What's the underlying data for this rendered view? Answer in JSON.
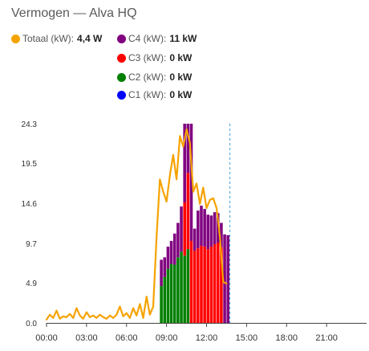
{
  "card": {
    "title": "Vermogen — Alva HQ"
  },
  "legend": [
    {
      "label": "Totaal (kW):",
      "value": "4,4 W",
      "color": "#f5a300"
    },
    {
      "label": "C4 (kW):",
      "value": "11 kW",
      "color": "#800080"
    },
    {
      "label": "C3 (kW):",
      "value": "0 kW",
      "color": "#ff0000"
    },
    {
      "label": "C2 (kW):",
      "value": "0 kW",
      "color": "#008000"
    },
    {
      "label": "C1 (kW):",
      "value": "0 kW",
      "color": "#0000ff"
    }
  ],
  "chart_data": {
    "type": "bar",
    "xlabel": "",
    "ylabel": "",
    "ylim": [
      0,
      24.3
    ],
    "xlim_hours": [
      0,
      24
    ],
    "yticks": [
      "24.3",
      "19.5",
      "14.6",
      "9.7",
      "4.9",
      "0.0"
    ],
    "ytick_values": [
      24.3,
      19.5,
      14.6,
      9.7,
      4.9,
      0.0
    ],
    "xticks": [
      "00:00",
      "03:00",
      "06:00",
      "09:00",
      "12:00",
      "15:00",
      "18:00",
      "21:00"
    ],
    "xtick_values": [
      0,
      3,
      6,
      9,
      12,
      15,
      18,
      21
    ],
    "now_marker_hour": 13.75,
    "grid": false,
    "legend_position": "top",
    "stacked_series": [
      {
        "name": "C2 (kW)",
        "color": "#008000",
        "x": [
          8.5,
          8.75,
          9.0,
          9.25,
          9.5,
          9.75,
          10.0,
          10.25,
          10.5,
          10.75,
          11.0,
          11.25,
          11.5,
          11.75,
          12.0,
          12.25,
          12.5,
          12.75,
          13.0,
          13.25,
          13.5
        ],
        "values": [
          4.5,
          5.6,
          6.6,
          7.2,
          7.1,
          8.0,
          8.7,
          8.2,
          9.0,
          0,
          0,
          0,
          0,
          0,
          0,
          0,
          0,
          0,
          0,
          0,
          0
        ]
      },
      {
        "name": "C3 (kW)",
        "color": "#ff0000",
        "x": [
          8.5,
          8.75,
          9.0,
          9.25,
          9.5,
          9.75,
          10.0,
          10.25,
          10.5,
          10.75,
          11.0,
          11.25,
          11.5,
          11.75,
          12.0,
          12.25,
          12.5,
          12.75,
          13.0,
          13.25,
          13.5
        ],
        "values": [
          0,
          0,
          0,
          0,
          0,
          0,
          0,
          6.5,
          9.3,
          10.0,
          8.8,
          9.1,
          9.4,
          9.3,
          9.0,
          9.3,
          9.6,
          9.8,
          9.2,
          0,
          0
        ]
      },
      {
        "name": "C4 (kW)",
        "color": "#800080",
        "x": [
          8.5,
          8.75,
          9.0,
          9.25,
          9.5,
          9.75,
          10.0,
          10.25,
          10.5,
          10.75,
          11.0,
          11.25,
          11.5,
          11.75,
          12.0,
          12.25,
          12.5,
          12.75,
          13.0,
          13.25,
          13.5
        ],
        "values": [
          3.2,
          2.4,
          2.7,
          2.8,
          3.8,
          4.2,
          5.5,
          9.6,
          6.0,
          14.3,
          2.7,
          4.6,
          4.9,
          4.6,
          4.2,
          3.8,
          3.9,
          3.6,
          3.0,
          10.8,
          10.7
        ]
      },
      {
        "name": "C1 (kW)",
        "color": "#0000ff",
        "x": [],
        "values": []
      }
    ],
    "line_series": {
      "name": "Totaal (kW)",
      "color": "#f5a300",
      "x": [
        0,
        0.25,
        0.5,
        0.75,
        1.0,
        1.25,
        1.5,
        1.75,
        2.0,
        2.25,
        2.5,
        2.75,
        3.0,
        3.25,
        3.5,
        3.75,
        4.0,
        4.25,
        4.5,
        4.75,
        5.0,
        5.25,
        5.5,
        5.75,
        6.0,
        6.25,
        6.5,
        6.75,
        7.0,
        7.25,
        7.5,
        7.75,
        8.0,
        8.25,
        8.5,
        8.75,
        9.0,
        9.25,
        9.5,
        9.75,
        10.0,
        10.25,
        10.5,
        10.75,
        11.0,
        11.25,
        11.5,
        11.75,
        12.0,
        12.25,
        12.5,
        12.75,
        13.0,
        13.25,
        13.5
      ],
      "values": [
        0.4,
        1.0,
        0.6,
        1.5,
        0.5,
        0.8,
        0.7,
        1.1,
        0.6,
        1.8,
        0.9,
        0.5,
        1.3,
        0.7,
        0.9,
        0.6,
        1.0,
        0.7,
        0.5,
        0.9,
        0.6,
        1.0,
        2.0,
        0.8,
        1.2,
        0.6,
        1.8,
        0.9,
        2.3,
        0.6,
        3.2,
        1.0,
        2.0,
        10.5,
        17.5,
        16.0,
        14.8,
        18.0,
        20.5,
        17.5,
        22.8,
        21.5,
        23.6,
        22.0,
        16.0,
        17.0,
        14.5,
        16.5,
        14.0,
        15.0,
        15.2,
        14.0,
        10.5,
        5.0,
        4.8
      ]
    }
  }
}
